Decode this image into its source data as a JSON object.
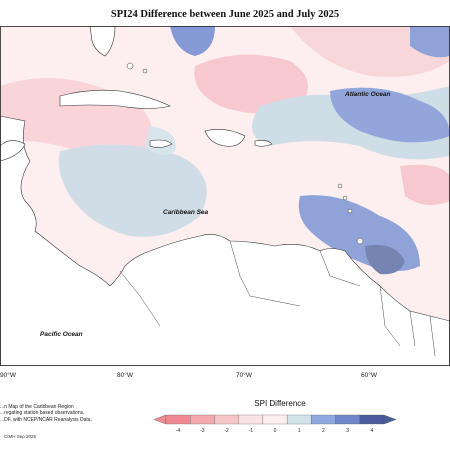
{
  "title": "SPI24 Difference between June 2025 and July 2025",
  "map_labels": {
    "atlantic": "Atlantic Ocean",
    "caribbean": "Caribbean Sea",
    "pacific": "Pacific Ocean"
  },
  "longitude_ticks": [
    "90°W",
    "80°W",
    "70°W",
    "60°W"
  ],
  "legend": {
    "title": "SPI Difference",
    "ticks": [
      "-4",
      "-3",
      "-2",
      "-1",
      "0",
      "1",
      "2",
      "3",
      "4"
    ],
    "colors": [
      "#f08a92",
      "#f4a9ae",
      "#f7c6c9",
      "#fbe3e5",
      "#fdeff1",
      "#d4e3ea",
      "#8fa8df",
      "#6f86c8",
      "#4b5c9a"
    ]
  },
  "description": [
    "...n Map of the Caribbean Region",
    "...regating station based observations,",
    "...DF, with NCEP/NCAR Reanalysis Data."
  ],
  "credit": "CIMH Sep 2025"
}
